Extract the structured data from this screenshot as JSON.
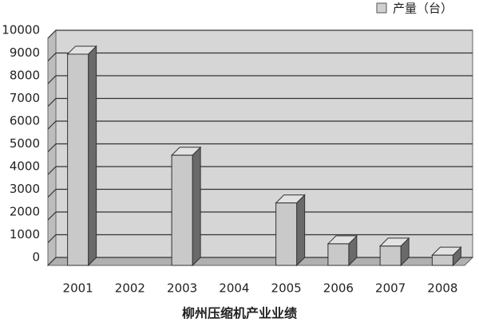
{
  "chart_data": {
    "type": "bar",
    "title": "柳州压缩机产业业绩",
    "legend": "产量（台）",
    "categories": [
      "2001",
      "2002",
      "2003",
      "2004",
      "2005",
      "2006",
      "2007",
      "2008"
    ],
    "values": [
      9300,
      null,
      4850,
      null,
      2750,
      950,
      850,
      450
    ],
    "color": "#c9c9c9",
    "ylim": [
      0,
      10000
    ],
    "yticks": [
      0,
      1000,
      2000,
      3000,
      4000,
      5000,
      6000,
      7000,
      8000,
      9000,
      10000
    ],
    "grid": true
  }
}
